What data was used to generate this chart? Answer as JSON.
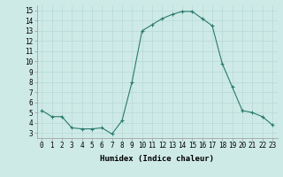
{
  "x": [
    0,
    1,
    2,
    3,
    4,
    5,
    6,
    7,
    8,
    9,
    10,
    11,
    12,
    13,
    14,
    15,
    16,
    17,
    18,
    19,
    20,
    21,
    22,
    23
  ],
  "y": [
    5.2,
    4.6,
    4.6,
    3.5,
    3.4,
    3.4,
    3.5,
    2.9,
    4.2,
    8.0,
    13.0,
    13.6,
    14.2,
    14.6,
    14.9,
    14.9,
    14.2,
    13.5,
    9.8,
    7.5,
    5.2,
    5.0,
    4.6,
    3.8
  ],
  "xlabel": "Humidex (Indice chaleur)",
  "xlim": [
    -0.5,
    23.5
  ],
  "ylim": [
    2.5,
    15.5
  ],
  "yticks": [
    3,
    4,
    5,
    6,
    7,
    8,
    9,
    10,
    11,
    12,
    13,
    14,
    15
  ],
  "xticks": [
    0,
    1,
    2,
    3,
    4,
    5,
    6,
    7,
    8,
    9,
    10,
    11,
    12,
    13,
    14,
    15,
    16,
    17,
    18,
    19,
    20,
    21,
    22,
    23
  ],
  "line_color": "#2a7a6e",
  "marker": "+",
  "markersize": 3,
  "linewidth": 0.8,
  "bg_color": "#ceeae7",
  "grid_color": "#b8d8d5",
  "tick_fontsize": 5.5,
  "xlabel_fontsize": 6.5
}
